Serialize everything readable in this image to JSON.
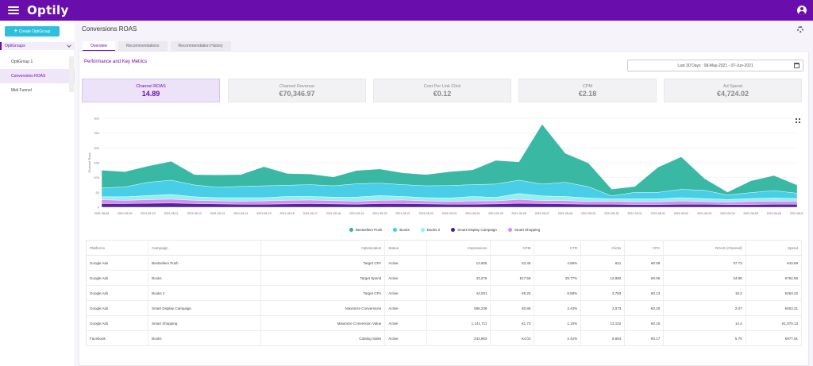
{
  "app": {
    "logo": "Optily"
  },
  "sidebar": {
    "create_button": "Create OptiGroup",
    "group_label": "OptiGroups",
    "items": [
      {
        "label": "OptiGroup 1",
        "active": false
      },
      {
        "label": "Conversions ROAS",
        "active": true
      },
      {
        "label": "Midi Funnel",
        "active": false
      }
    ]
  },
  "page": {
    "title": "Conversions ROAS"
  },
  "tabs": [
    {
      "label": "Overview",
      "active": true
    },
    {
      "label": "Recommendations",
      "active": false
    },
    {
      "label": "Recommendation History",
      "active": false
    }
  ],
  "section_title": "Performance and Key Metrics",
  "date_range": "Last 30 Days : 08-May-2021 - 07-Jun-2021",
  "metrics": [
    {
      "label": "Channel ROAS",
      "value": "14.89",
      "active": true
    },
    {
      "label": "Channel Revenue",
      "value": "€70,346.97",
      "active": false
    },
    {
      "label": "Cost Per Link Click",
      "value": "€0.12",
      "active": false
    },
    {
      "label": "CPM",
      "value": "€2.18",
      "active": false
    },
    {
      "label": "Ad Spend",
      "value": "€4,724.02",
      "active": false
    }
  ],
  "chart_data": {
    "type": "area",
    "stacked": true,
    "ylabel": "Channel Roas",
    "ylim": [
      0,
      300
    ],
    "yticks": [
      0,
      50,
      100,
      150,
      200,
      250,
      300
    ],
    "grid": true,
    "legend_position": "bottom",
    "x": [
      "2021-05-08",
      "2021-05-09",
      "2021-05-10",
      "2021-05-11",
      "2021-05-12",
      "2021-05-13",
      "2021-05-14",
      "2021-05-15",
      "2021-05-16",
      "2021-05-17",
      "2021-05-18",
      "2021-05-19",
      "2021-05-20",
      "2021-05-21",
      "2021-05-22",
      "2021-05-23",
      "2021-05-24",
      "2021-05-25",
      "2021-05-26",
      "2021-05-27",
      "2021-05-28",
      "2021-05-29",
      "2021-05-30",
      "2021-05-31",
      "2021-06-01",
      "2021-06-02",
      "2021-06-03",
      "2021-06-04",
      "2021-06-05",
      "2021-06-06",
      "2021-06-07"
    ],
    "series": [
      {
        "name": "Smart Display Campaign",
        "color": "#4b1a9a",
        "values": [
          12,
          12,
          13,
          14,
          12,
          11,
          10,
          10,
          11,
          12,
          11,
          10,
          12,
          12,
          11,
          10,
          10,
          11,
          13,
          12,
          11,
          10,
          10,
          9,
          9,
          10,
          10,
          9,
          9,
          10,
          10
        ]
      },
      {
        "name": "Smart Shopping",
        "color": "#d787ef",
        "values": [
          13,
          11,
          12,
          13,
          11,
          10,
          10,
          11,
          12,
          12,
          11,
          10,
          11,
          12,
          10,
          9,
          11,
          10,
          13,
          10,
          11,
          9,
          10,
          9,
          9,
          11,
          9,
          8,
          10,
          10,
          10
        ]
      },
      {
        "name": "Books 2",
        "color": "#8ff0f0",
        "values": [
          10,
          12,
          14,
          16,
          12,
          11,
          12,
          11,
          13,
          12,
          12,
          14,
          16,
          12,
          11,
          12,
          15,
          12,
          20,
          16,
          14,
          12,
          8,
          10,
          10,
          11,
          10,
          9,
          10,
          11,
          9
        ]
      },
      {
        "name": "Books",
        "color": "#3fcce6",
        "values": [
          30,
          33,
          45,
          48,
          40,
          35,
          38,
          40,
          38,
          40,
          38,
          45,
          42,
          40,
          40,
          42,
          40,
          45,
          45,
          40,
          48,
          38,
          10,
          22,
          22,
          28,
          28,
          15,
          20,
          25,
          18
        ]
      },
      {
        "name": "Bestsellers Push",
        "color": "#2fb5a0",
        "values": [
          60,
          52,
          55,
          64,
          35,
          42,
          40,
          65,
          40,
          36,
          30,
          45,
          48,
          40,
          38,
          47,
          50,
          80,
          62,
          202,
          98,
          80,
          23,
          20,
          85,
          110,
          40,
          10,
          40,
          51,
          28
        ]
      }
    ]
  },
  "table": {
    "columns": [
      "Platforms",
      "Campaign",
      "Optimization",
      "Status",
      "Impressions",
      "CPM",
      "CTR",
      "Clicks",
      "CPC",
      "ROAS (Channel)",
      "Spend"
    ],
    "rows": [
      [
        "Google Ads",
        "Bestsellers Push",
        "Target CPA",
        "Active",
        "12,605",
        "€3.45",
        "4.89%",
        "621",
        "€0.09",
        "37.73",
        "€43.69"
      ],
      [
        "Google Ads",
        "Books",
        "Target Spend",
        "Active",
        "43,276",
        "€17.59",
        "29.77%",
        "12,882",
        "€0.06",
        "24.98",
        "€762.85"
      ],
      [
        "Google Ads",
        "Books 2",
        "Target CPA",
        "Active",
        "44,031",
        "€5.25",
        "8.58%",
        "3,783",
        "€0.13",
        "18.2",
        "€263.22"
      ],
      [
        "Google Ads",
        "Smart Display Campaign",
        "Maximize Conversions",
        "Active",
        "585,238",
        "€0.86",
        "3.43%",
        "2,873",
        "€0.20",
        "2.07",
        "€603.21"
      ],
      [
        "Google Ads",
        "Smart Shopping",
        "Maximize Conversion Value",
        "Active",
        "1,141,711",
        "€1.72",
        "1.15%",
        "13,102",
        "€0.15",
        "14.4",
        "€1,970.13"
      ],
      [
        "Facebook",
        "Books",
        "Catalog Sales",
        "Active",
        "242,863",
        "€4.02",
        "2.42%",
        "8,664",
        "€0.17",
        "5.79",
        "€977.91"
      ]
    ]
  }
}
